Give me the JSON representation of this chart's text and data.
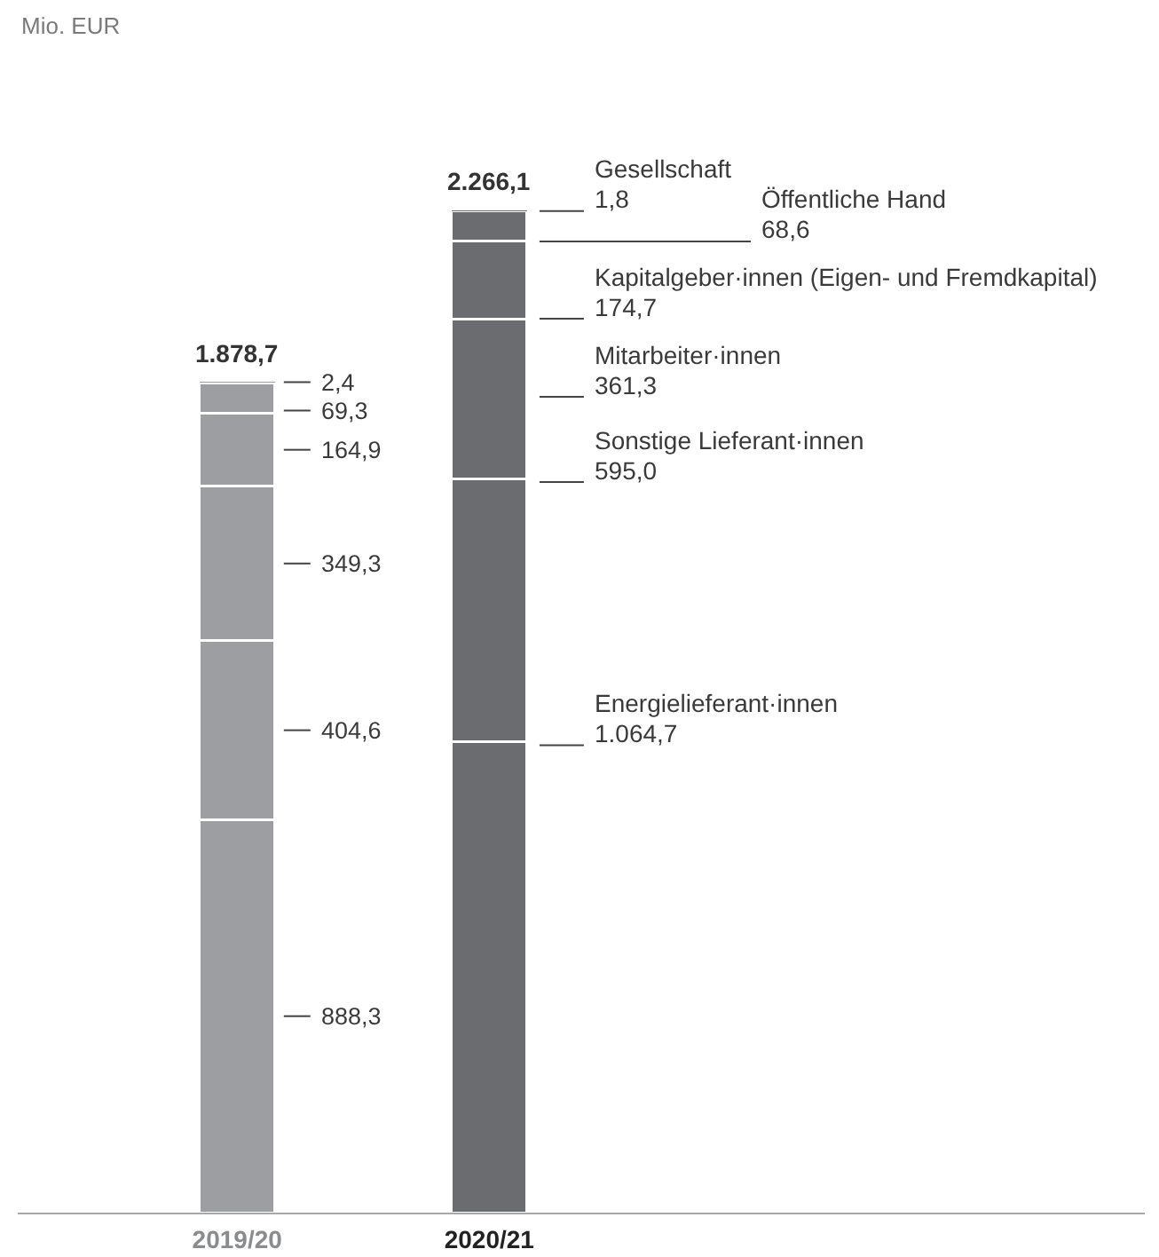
{
  "chart_data": {
    "type": "bar",
    "stacked": true,
    "annotations": [
      "Mio. EUR"
    ],
    "categories": [
      "2019/20",
      "2020/21"
    ],
    "series": [
      {
        "name": "Energielieferant·innen",
        "colors": [
          "#9d9ea2",
          "#6b6c70"
        ],
        "values": [
          888.3,
          1064.7
        ],
        "value_labels": [
          "888,3",
          "1.064,7"
        ]
      },
      {
        "name": "Sonstige Lieferant·innen",
        "colors": [
          "#9d9ea2",
          "#6b6c70"
        ],
        "values": [
          404.6,
          595.0
        ],
        "value_labels": [
          "404,6",
          "595,0"
        ]
      },
      {
        "name": "Mitarbeiter·innen",
        "colors": [
          "#9d9ea2",
          "#6b6c70"
        ],
        "values": [
          349.3,
          361.3
        ],
        "value_labels": [
          "349,3",
          "361,3"
        ]
      },
      {
        "name": "Kapitalgeber·innen (Eigen- und Fremdkapital)",
        "colors": [
          "#9d9ea2",
          "#6b6c70"
        ],
        "values": [
          164.9,
          174.7
        ],
        "value_labels": [
          "164,9",
          "174,7"
        ]
      },
      {
        "name": "Öffentliche Hand",
        "colors": [
          "#9d9ea2",
          "#6b6c70"
        ],
        "values": [
          69.3,
          68.6
        ],
        "value_labels": [
          "69,3",
          "68,6"
        ]
      },
      {
        "name": "Gesellschaft",
        "colors": [
          "#9d9ea2",
          "#6b6c70"
        ],
        "values": [
          2.4,
          1.8
        ],
        "value_labels": [
          "2,4",
          "1,8"
        ]
      }
    ],
    "totals": [
      "1.878,7",
      "2.266,1"
    ]
  }
}
